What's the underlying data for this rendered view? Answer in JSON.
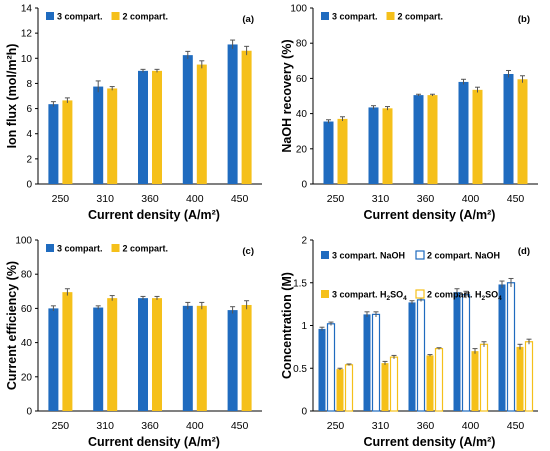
{
  "colors": {
    "blue": "#1F6BBF",
    "yellow": "#F5C01A",
    "axis": "#000000"
  },
  "chart_data": [
    {
      "panel": "(a)",
      "type": "bar",
      "xlabel": "Current density (A/m²)",
      "ylabel": "Ion flux (mol/m²h)",
      "categories": [
        "250",
        "310",
        "360",
        "400",
        "450"
      ],
      "ylim": [
        0,
        14
      ],
      "yticks": [
        "0",
        "2",
        "4",
        "6",
        "8",
        "10",
        "12",
        "14"
      ],
      "legend_position": "top-left",
      "series": [
        {
          "name": "3 compart.",
          "style": "solid-blue",
          "values": [
            6.35,
            7.75,
            9.0,
            10.25,
            11.1
          ],
          "errors": [
            0.2,
            0.45,
            0.12,
            0.3,
            0.35
          ]
        },
        {
          "name": "2 compart.",
          "style": "solid-yellow",
          "values": [
            6.65,
            7.6,
            9.0,
            9.5,
            10.6
          ],
          "errors": [
            0.2,
            0.15,
            0.12,
            0.3,
            0.35
          ]
        }
      ]
    },
    {
      "panel": "(b)",
      "type": "bar",
      "xlabel": "Current density (A/m²)",
      "ylabel": "NaOH recovery (%)",
      "categories": [
        "250",
        "310",
        "360",
        "400",
        "450"
      ],
      "ylim": [
        0,
        100
      ],
      "yticks": [
        "0",
        "20",
        "40",
        "60",
        "80",
        "100"
      ],
      "legend_position": "top-left",
      "series": [
        {
          "name": "3 compart.",
          "style": "solid-blue",
          "values": [
            35.5,
            43.5,
            50.5,
            58.0,
            62.5
          ],
          "errors": [
            1.0,
            1.0,
            0.5,
            1.5,
            2.0
          ]
        },
        {
          "name": "2 compart.",
          "style": "solid-yellow",
          "values": [
            37.0,
            43.0,
            50.5,
            53.5,
            59.5
          ],
          "errors": [
            1.2,
            1.0,
            0.5,
            1.5,
            2.0
          ]
        }
      ]
    },
    {
      "panel": "(c)",
      "type": "bar",
      "xlabel": "Current density (A/m²)",
      "ylabel": "Current efficiency (%)",
      "categories": [
        "250",
        "310",
        "360",
        "400",
        "450"
      ],
      "ylim": [
        0,
        100
      ],
      "yticks": [
        "0",
        "20",
        "40",
        "60",
        "80",
        "100"
      ],
      "legend_position": "top-left",
      "series": [
        {
          "name": "3 compart.",
          "style": "solid-blue",
          "values": [
            60.0,
            60.5,
            66.0,
            61.5,
            59.0
          ],
          "errors": [
            1.5,
            1.0,
            1.0,
            2.0,
            2.0
          ]
        },
        {
          "name": "2 compart.",
          "style": "solid-yellow",
          "values": [
            69.5,
            66.0,
            66.0,
            61.5,
            62.0
          ],
          "errors": [
            2.0,
            1.5,
            1.0,
            2.0,
            2.5
          ]
        }
      ]
    },
    {
      "panel": "(d)",
      "type": "bar",
      "xlabel": "Current density (A/m²)",
      "ylabel": "Concentration (M)",
      "categories": [
        "250",
        "310",
        "360",
        "400",
        "450"
      ],
      "ylim": [
        0,
        2
      ],
      "yticks": [
        "0",
        "0.5",
        "1",
        "1.5",
        "2"
      ],
      "legend_position": "top-left",
      "series": [
        {
          "name": "3 compart. NaOH",
          "base": "3 compart. NaOH",
          "sub": "",
          "style": "solid-blue",
          "values": [
            0.96,
            1.13,
            1.27,
            1.39,
            1.48
          ],
          "errors": [
            0.02,
            0.03,
            0.02,
            0.04,
            0.04
          ]
        },
        {
          "name": "2 compart. NaOH",
          "base": "2 compart. NaOH",
          "sub": "",
          "style": "hollow-blue",
          "values": [
            1.02,
            1.13,
            1.3,
            1.36,
            1.5
          ],
          "errors": [
            0.02,
            0.03,
            0.02,
            0.04,
            0.05
          ]
        },
        {
          "name": "3 compart. H2SO4",
          "base": "3 compart. H",
          "sub": "2",
          "tail": "SO",
          "sub2": "4",
          "style": "solid-yellow",
          "values": [
            0.49,
            0.56,
            0.65,
            0.7,
            0.75
          ],
          "errors": [
            0.01,
            0.02,
            0.01,
            0.03,
            0.03
          ]
        },
        {
          "name": "2 compart. H2SO4",
          "base": "2 compart. H",
          "sub": "2",
          "tail": "SO",
          "sub2": "4",
          "style": "hollow-yellow",
          "values": [
            0.54,
            0.63,
            0.73,
            0.78,
            0.81
          ],
          "errors": [
            0.01,
            0.02,
            0.01,
            0.03,
            0.03
          ]
        }
      ]
    }
  ]
}
